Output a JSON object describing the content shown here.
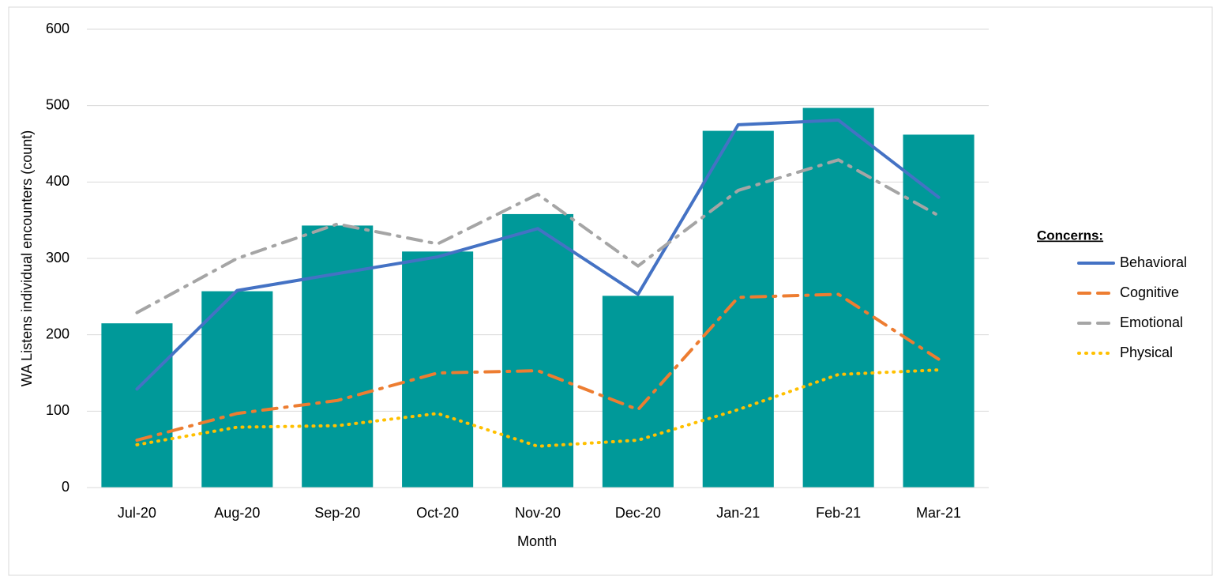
{
  "chart_data": {
    "type": "combo",
    "categories": [
      "Jul-20",
      "Aug-20",
      "Sep-20",
      "Oct-20",
      "Nov-20",
      "Dec-20",
      "Jan-21",
      "Feb-21",
      "Mar-21"
    ],
    "values": [
      215,
      257,
      343,
      309,
      358,
      251,
      467,
      497,
      462
    ],
    "color": "#009999",
    "series": [
      {
        "name": "Behavioral",
        "color": "#4472c4",
        "dash": "none",
        "values": [
          129,
          258,
          280,
          302,
          339,
          253,
          475,
          481,
          380
        ]
      },
      {
        "name": "Cognitive",
        "color": "#ed7d31",
        "dash": "18 10 3 10",
        "values": [
          62,
          97,
          114,
          150,
          153,
          102,
          249,
          253,
          168
        ]
      },
      {
        "name": "Emotional",
        "color": "#a5a5a5",
        "dash": "18 10 3 10",
        "values": [
          229,
          300,
          345,
          319,
          384,
          290,
          389,
          429,
          356
        ]
      },
      {
        "name": "Physical",
        "color": "#ffc000",
        "dash": "1 8",
        "values": [
          56,
          79,
          81,
          97,
          54,
          62,
          102,
          148,
          154
        ]
      }
    ],
    "ylim": [
      0,
      600
    ],
    "yticks": [
      0,
      100,
      200,
      300,
      400,
      500,
      600
    ],
    "grid": true,
    "x_label": "Month",
    "y_label": "WA Listens individual encounters (count)",
    "legend_title": "Concerns:",
    "legend": "right"
  }
}
